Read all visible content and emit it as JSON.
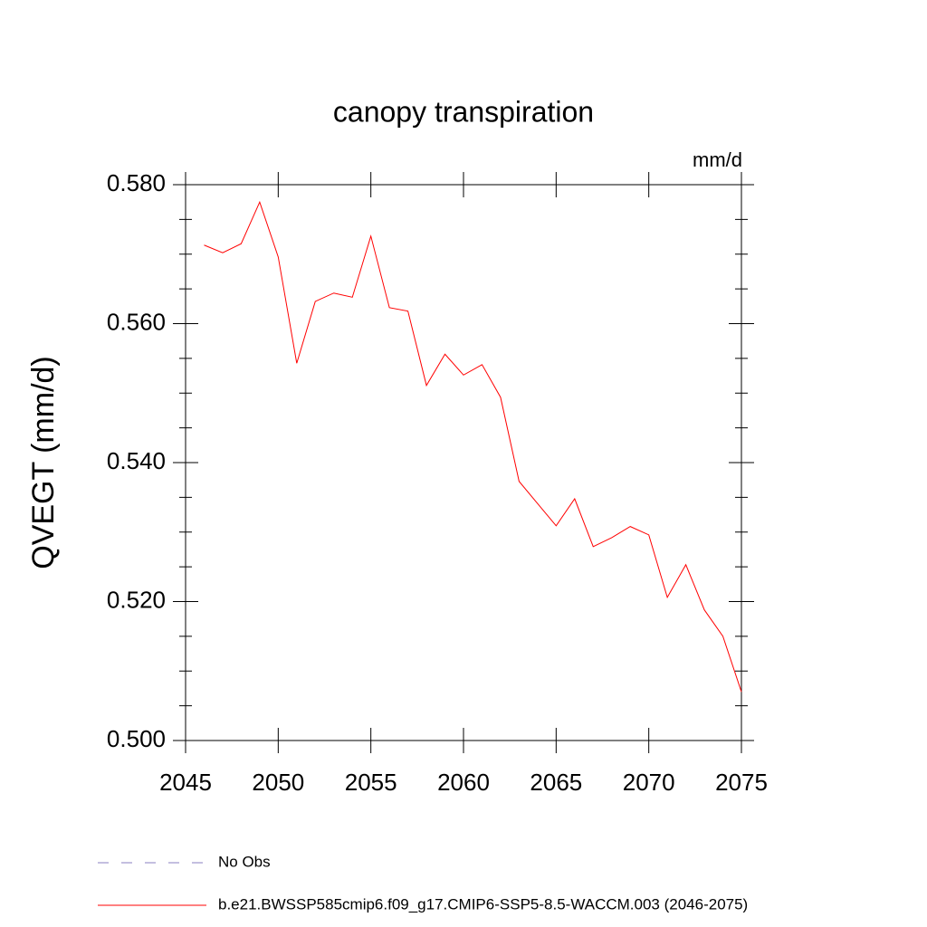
{
  "chart_data": {
    "type": "line",
    "title": "canopy transpiration",
    "units": "mm/d",
    "y_label": "QVEGT  (mm/d)",
    "x": [
      2046,
      2047,
      2048,
      2049,
      2050,
      2051,
      2052,
      2053,
      2054,
      2055,
      2056,
      2057,
      2058,
      2059,
      2060,
      2061,
      2062,
      2063,
      2064,
      2065,
      2066,
      2067,
      2068,
      2069,
      2070,
      2071,
      2072,
      2073,
      2074,
      2075
    ],
    "series": [
      {
        "name": "b.e21.BWSSP585cmip6.f09_g17.CMIP6-SSP5-8.5-WACCM.003 (2046-2075)",
        "color": "#ff0000",
        "values": [
          0.5713,
          0.5702,
          0.5715,
          0.5775,
          0.5696,
          0.5543,
          0.5632,
          0.5644,
          0.5638,
          0.5726,
          0.5623,
          0.5618,
          0.5511,
          0.5556,
          0.5526,
          0.5541,
          0.5494,
          0.5373,
          0.5341,
          0.5309,
          0.5348,
          0.5279,
          0.5292,
          0.5308,
          0.5296,
          0.5206,
          0.5253,
          0.5188,
          0.515,
          0.507
        ]
      }
    ],
    "obs_legend": {
      "label": "No Obs",
      "color": "#8a7fc0",
      "dashed": true
    },
    "xlim": [
      2045,
      2075
    ],
    "xticks": [
      2045,
      2050,
      2055,
      2060,
      2065,
      2070,
      2075
    ],
    "ylim": [
      0.5,
      0.58
    ],
    "yticks": [
      {
        "value": 0.5,
        "label": "0.500"
      },
      {
        "value": 0.52,
        "label": "0.520"
      },
      {
        "value": 0.54,
        "label": "0.540"
      },
      {
        "value": 0.56,
        "label": "0.560"
      },
      {
        "value": 0.58,
        "label": "0.580"
      }
    ],
    "yminorticks": [
      0.505,
      0.51,
      0.515,
      0.525,
      0.53,
      0.535,
      0.545,
      0.55,
      0.555,
      0.565,
      0.57,
      0.575
    ],
    "grid": false
  }
}
